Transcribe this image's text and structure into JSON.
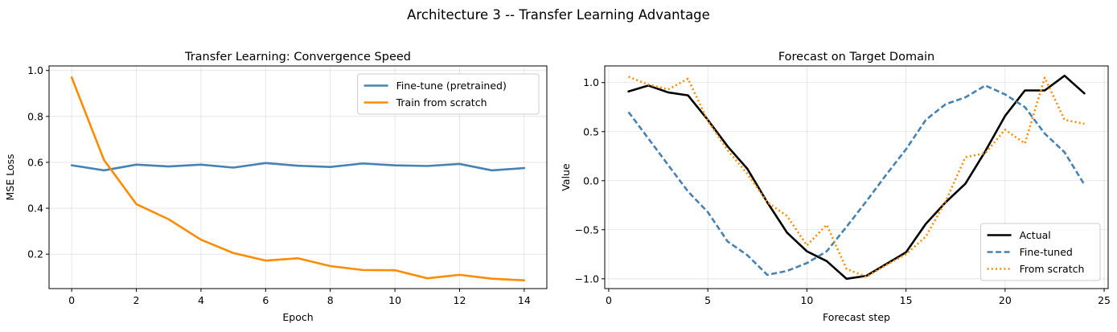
{
  "figure": {
    "suptitle": "Architecture 3 -- Transfer Learning Advantage"
  },
  "chart_data": [
    {
      "type": "line",
      "title": "Transfer Learning: Convergence Speed",
      "xlabel": "Epoch",
      "ylabel": "MSE Loss",
      "xlim": [
        -0.7,
        14.7
      ],
      "ylim": [
        0.05,
        1.02
      ],
      "xticks": [
        0,
        2,
        4,
        6,
        8,
        10,
        12,
        14
      ],
      "xtick_labels": [
        "0",
        "2",
        "4",
        "6",
        "8",
        "10",
        "12",
        "14"
      ],
      "yticks": [
        0.2,
        0.4,
        0.6,
        0.8,
        1.0
      ],
      "ytick_labels": [
        "0.2",
        "0.4",
        "0.6",
        "0.8",
        "1.0"
      ],
      "grid": true,
      "legend_position": "top-right",
      "x": [
        0,
        1,
        2,
        3,
        4,
        5,
        6,
        7,
        8,
        9,
        10,
        11,
        12,
        13,
        14
      ],
      "series": [
        {
          "name": "Fine-tune (pretrained)",
          "color": "#4682b4",
          "style": "solid",
          "values": [
            0.587,
            0.565,
            0.59,
            0.582,
            0.59,
            0.577,
            0.597,
            0.585,
            0.58,
            0.595,
            0.587,
            0.584,
            0.593,
            0.565,
            0.575
          ]
        },
        {
          "name": "Train from scratch",
          "color": "#ff8c00",
          "style": "solid",
          "values": [
            0.97,
            0.61,
            0.418,
            0.352,
            0.263,
            0.205,
            0.172,
            0.182,
            0.148,
            0.131,
            0.13,
            0.095,
            0.11,
            0.093,
            0.086
          ]
        }
      ]
    },
    {
      "type": "line",
      "title": "Forecast on Target Domain",
      "xlabel": "Forecast step",
      "ylabel": "Value",
      "xlim": [
        -0.2,
        25.2
      ],
      "ylim": [
        -1.1,
        1.17
      ],
      "xticks": [
        0,
        5,
        10,
        15,
        20,
        25
      ],
      "xtick_labels": [
        "0",
        "5",
        "10",
        "15",
        "20",
        "25"
      ],
      "yticks": [
        -1.0,
        -0.5,
        0.0,
        0.5,
        1.0
      ],
      "ytick_labels": [
        "−1.0",
        "−0.5",
        "0.0",
        "0.5",
        "1.0"
      ],
      "grid": true,
      "legend_position": "bottom-right",
      "x": [
        1,
        2,
        3,
        4,
        5,
        6,
        7,
        8,
        9,
        10,
        11,
        12,
        13,
        14,
        15,
        16,
        17,
        18,
        19,
        20,
        21,
        22,
        23,
        24
      ],
      "series": [
        {
          "name": "Actual",
          "color": "#000000",
          "style": "solid",
          "values": [
            0.91,
            0.97,
            0.9,
            0.87,
            0.62,
            0.35,
            0.12,
            -0.22,
            -0.53,
            -0.72,
            -0.82,
            -1.0,
            -0.97,
            -0.85,
            -0.73,
            -0.44,
            -0.22,
            -0.03,
            0.3,
            0.66,
            0.92,
            0.92,
            1.07,
            0.89
          ]
        },
        {
          "name": "Fine-tuned",
          "color": "#4682b4",
          "style": "dashed",
          "values": [
            0.7,
            0.43,
            0.16,
            -0.11,
            -0.32,
            -0.62,
            -0.76,
            -0.96,
            -0.92,
            -0.84,
            -0.72,
            -0.47,
            -0.21,
            0.06,
            0.32,
            0.62,
            0.78,
            0.85,
            0.97,
            0.88,
            0.75,
            0.48,
            0.29,
            -0.04
          ]
        },
        {
          "name": "From scratch",
          "color": "#ff8c00",
          "style": "dotted",
          "values": [
            1.06,
            0.98,
            0.93,
            1.04,
            0.61,
            0.31,
            0.07,
            -0.22,
            -0.36,
            -0.66,
            -0.45,
            -0.9,
            -0.98,
            -0.86,
            -0.75,
            -0.57,
            -0.21,
            0.24,
            0.28,
            0.52,
            0.38,
            1.05,
            0.62,
            0.58
          ]
        }
      ]
    }
  ]
}
